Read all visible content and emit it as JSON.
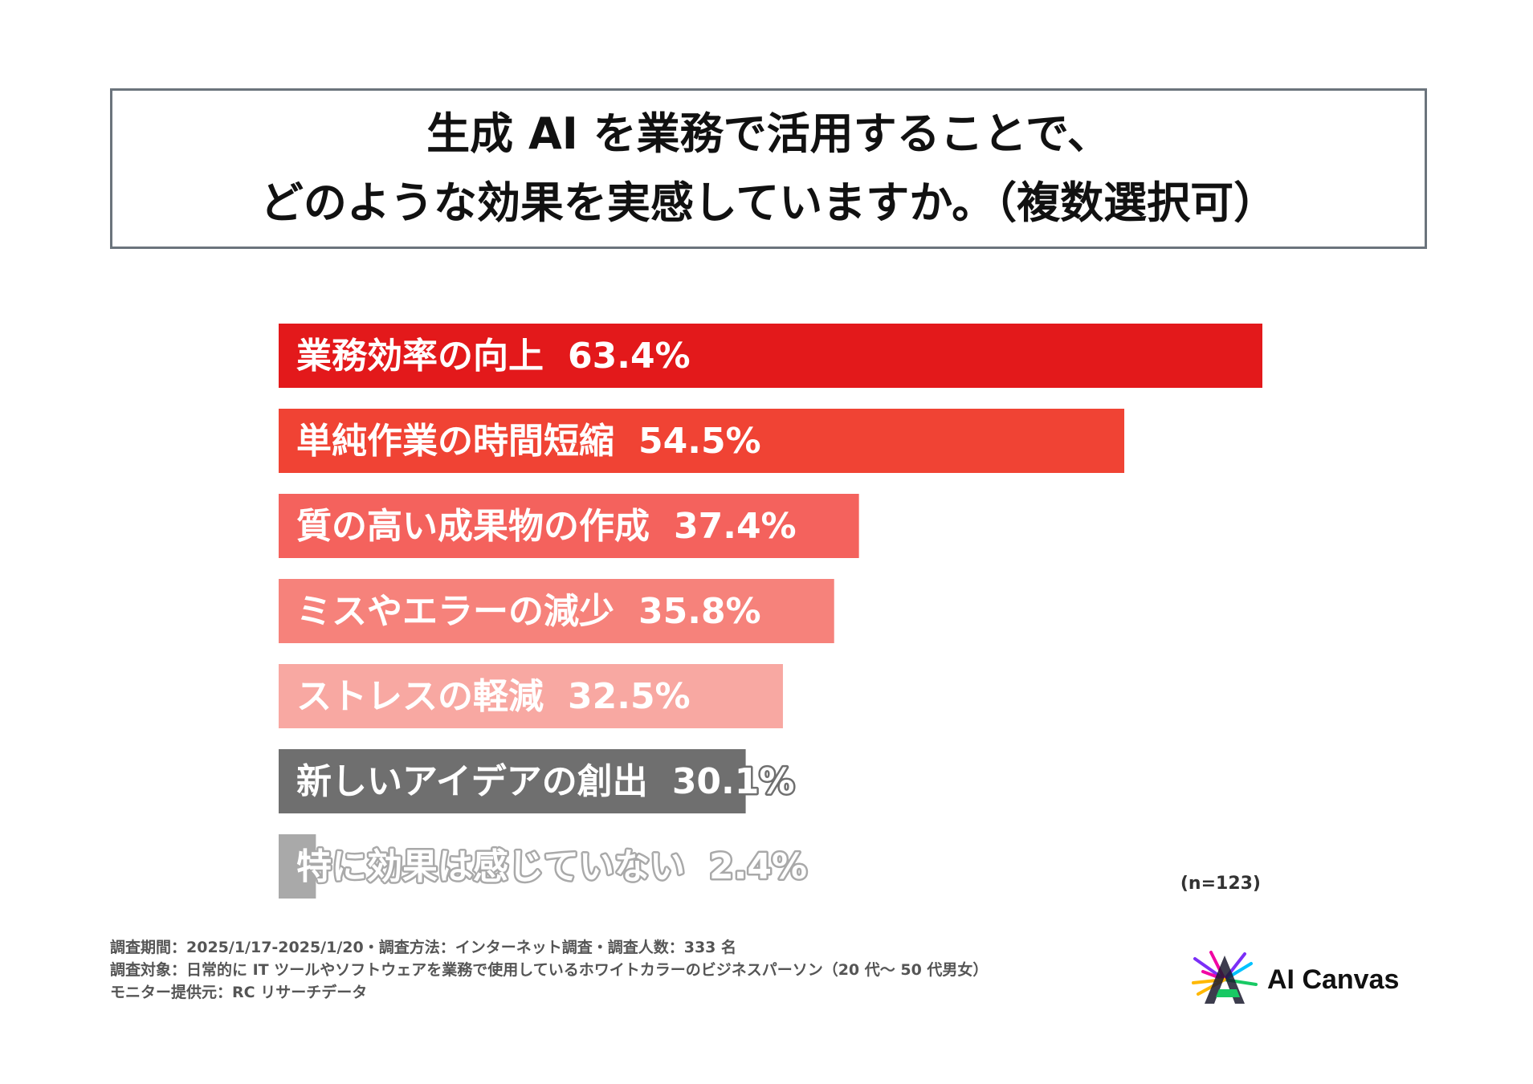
{
  "title": {
    "line1": "生成 AI を業務で活用することで、",
    "line2": "どのような効果を実感していますか。（複数選択可）"
  },
  "chart_data": {
    "type": "bar",
    "orientation": "horizontal",
    "categories": [
      "業務効率の向上",
      "単純作業の時間短縮",
      "質の高い成果物の作成",
      "ミスやエラーの減少",
      "ストレスの軽減",
      "新しいアイデアの創出",
      "特に効果は感じていない"
    ],
    "value_labels": [
      "63.4%",
      "54.5%",
      "37.4%",
      "35.8%",
      "32.5%",
      "30.1%",
      "2.4%"
    ],
    "values": [
      63.4,
      54.5,
      37.4,
      35.8,
      32.5,
      30.1,
      2.4
    ],
    "bar_colors": [
      "#e3191b",
      "#f04334",
      "#f4625d",
      "#f6827b",
      "#f8a8a2",
      "#6f6f6f",
      "#a9a9a9"
    ],
    "label_outline_colors": [
      "#e3191b",
      "#f04334",
      "#f4625d",
      "#f6827b",
      "#f8a8a2",
      "#6f6f6f",
      "#a9a9a9"
    ],
    "xlim": [
      0,
      63.4
    ],
    "legend": "none",
    "grid": false
  },
  "sample_note": "(n=123)",
  "footnotes": [
    "調査期間：2025/1/17-2025/1/20・調査方法：インターネット調査・調査人数：333 名",
    "調査対象：日常的に IT ツールやソフトウェアを業務で使用しているホワイトカラーのビジネスパーソン（20 代〜 50 代男女）",
    "モニター提供元：RC リサーチデータ"
  ],
  "logo": {
    "text": "AI Canvas",
    "mark_colors": [
      "#7b2ff7",
      "#f107a3",
      "#ffb800",
      "#00c2ff",
      "#18c964"
    ]
  }
}
